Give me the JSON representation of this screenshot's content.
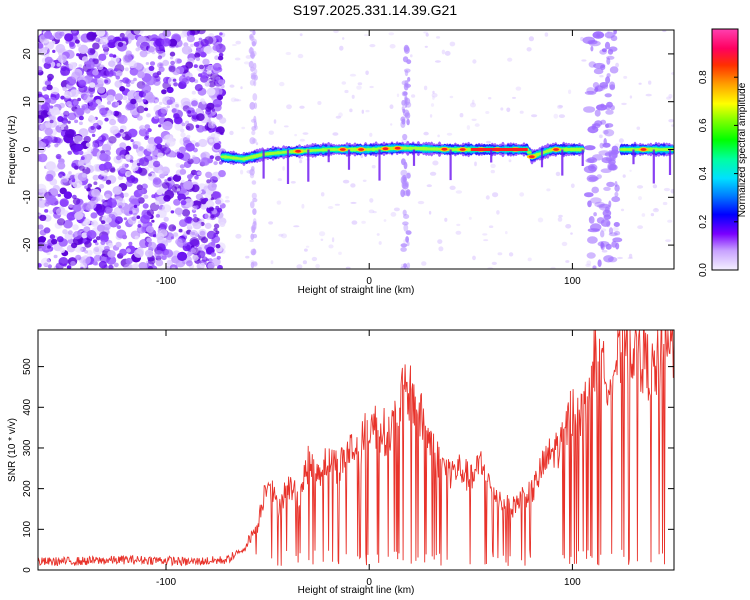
{
  "title": "S197.2025.331.14.39.G21",
  "chart_data": [
    {
      "type": "heatmap",
      "xlabel": "Height of straight line (km)",
      "ylabel": "Frequency (Hz)",
      "xlim": [
        -163,
        150
      ],
      "ylim": [
        -25,
        25
      ],
      "xticks": [
        -100,
        0,
        100
      ],
      "yticks": [
        -20,
        -10,
        0,
        10,
        20
      ],
      "colorbar": {
        "label": "Normalized spectral amplitude",
        "range": [
          0,
          1
        ],
        "ticks": [
          "0.0",
          "0.2",
          "0.4",
          "0.6",
          "0.8"
        ]
      },
      "noise_region": [
        -163,
        -72
      ],
      "ridge": [
        {
          "x": -72,
          "y": -1.5
        },
        {
          "x": -62,
          "y": -2
        },
        {
          "x": -52,
          "y": -1
        },
        {
          "x": -40,
          "y": -0.5
        },
        {
          "x": -20,
          "y": 0
        },
        {
          "x": 0,
          "y": 0
        },
        {
          "x": 15,
          "y": 0.3
        },
        {
          "x": 40,
          "y": 0
        },
        {
          "x": 60,
          "y": 0
        },
        {
          "x": 78,
          "y": 0
        },
        {
          "x": 80,
          "y": -1.5
        },
        {
          "x": 90,
          "y": 0
        },
        {
          "x": 106,
          "y": 0
        },
        {
          "x": 125,
          "y": 0
        },
        {
          "x": 150,
          "y": 0
        }
      ]
    },
    {
      "type": "line",
      "xlabel": "Height of straight line (km)",
      "ylabel": "SNR (10 * v/v)",
      "xlim": [
        -163,
        150
      ],
      "ylim": [
        0,
        590
      ],
      "xticks": [
        -100,
        0,
        100
      ],
      "yticks": [
        0,
        100,
        200,
        300,
        400,
        500
      ],
      "color": "#e8322a",
      "series": [
        {
          "name": "SNR",
          "x": [
            -163,
            -140,
            -120,
            -100,
            -90,
            -80,
            -70,
            -62,
            -55,
            -50,
            -45,
            -40,
            -35,
            -30,
            -25,
            -20,
            -15,
            -10,
            -5,
            0,
            5,
            10,
            15,
            20,
            25,
            30,
            35,
            40,
            45,
            50,
            55,
            60,
            65,
            70,
            75,
            80,
            85,
            90,
            95,
            100,
            105,
            110,
            115,
            120,
            125,
            130,
            135,
            140,
            145,
            150
          ],
          "y": [
            20,
            22,
            25,
            24,
            20,
            22,
            25,
            50,
            110,
            230,
            150,
            210,
            180,
            260,
            240,
            280,
            250,
            300,
            290,
            360,
            350,
            330,
            420,
            440,
            380,
            320,
            260,
            240,
            250,
            220,
            260,
            200,
            170,
            150,
            180,
            190,
            250,
            290,
            310,
            400,
            380,
            520,
            480,
            500,
            540,
            560,
            520,
            480,
            540,
            560
          ]
        }
      ]
    }
  ]
}
